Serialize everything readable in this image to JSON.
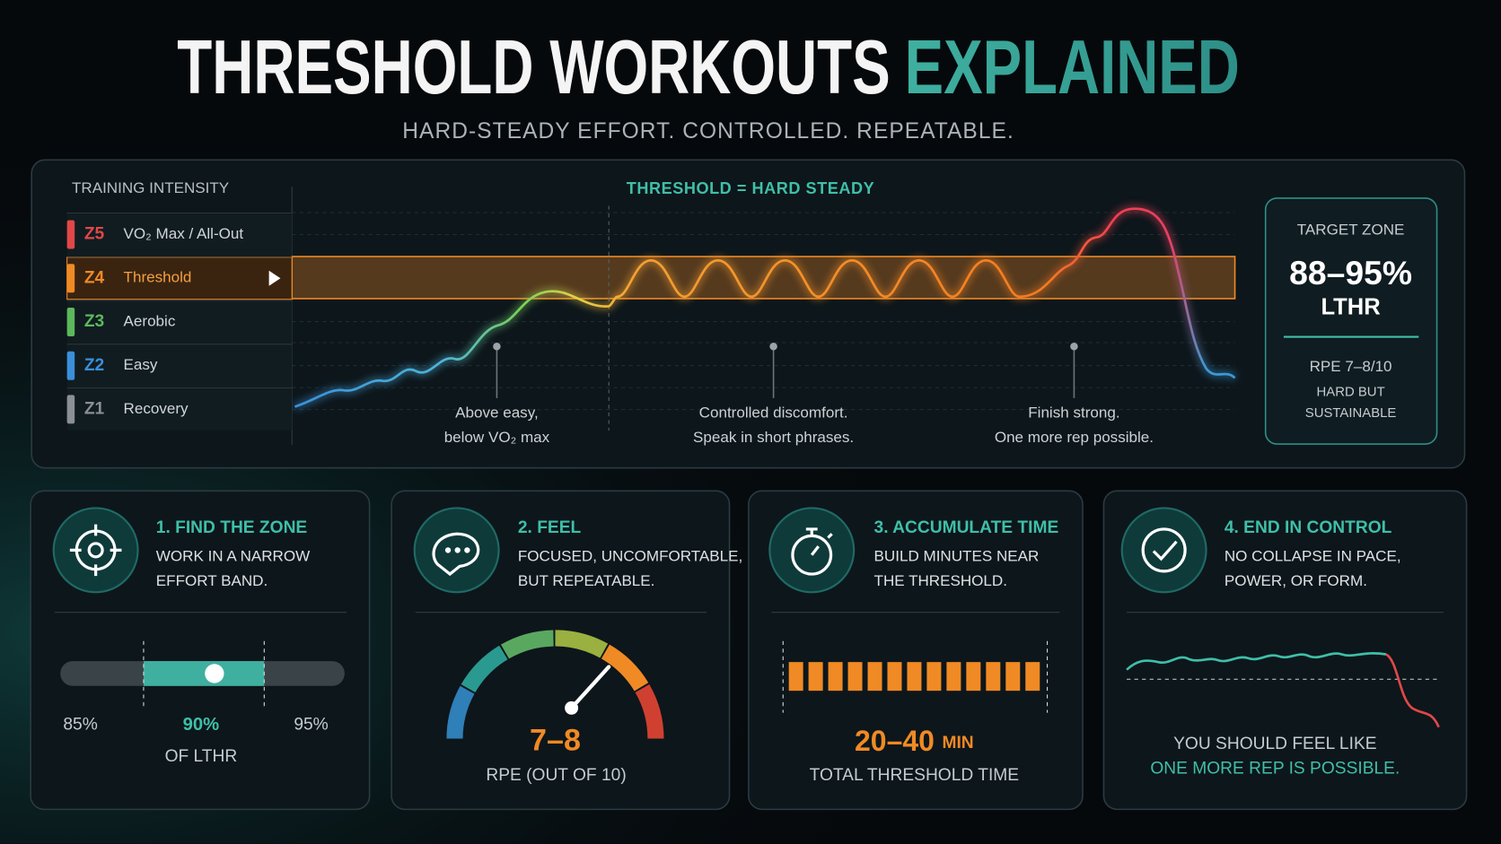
{
  "header": {
    "title_main": "THRESHOLD WORKOUTS",
    "title_accent": "EXPLAINED",
    "subtitle": "HARD-STEADY EFFORT. CONTROLLED. REPEATABLE."
  },
  "intensity_panel": {
    "label": "TRAINING INTENSITY",
    "heading": "THRESHOLD = HARD STEADY",
    "zones": [
      {
        "code": "Z5",
        "name": "VO₂ Max / All-Out"
      },
      {
        "code": "Z4",
        "name": "Threshold"
      },
      {
        "code": "Z3",
        "name": "Aerobic"
      },
      {
        "code": "Z2",
        "name": "Easy"
      },
      {
        "code": "Z1",
        "name": "Recovery"
      }
    ],
    "annotations": [
      [
        "Above easy,",
        "below VO₂ max"
      ],
      [
        "Controlled discomfort.",
        "Speak in short phrases."
      ],
      [
        "Finish strong.",
        "One more rep possible."
      ]
    ],
    "target": {
      "label": "TARGET ZONE",
      "range": "88–95%",
      "unit": "LTHR",
      "rpe": "RPE 7–8/10",
      "note": [
        "HARD BUT",
        "SUSTAINABLE"
      ]
    }
  },
  "steps": [
    {
      "title": "1. FIND THE ZONE",
      "text": [
        "WORK IN A NARROW",
        "EFFORT BAND."
      ],
      "low": "85%",
      "mid": "90%",
      "high": "95%",
      "caption": "OF LTHR"
    },
    {
      "title": "2. FEEL",
      "text": [
        "FOCUSED, UNCOMFORTABLE,",
        "BUT REPEATABLE."
      ],
      "value": "7–8",
      "caption": "RPE (OUT OF 10)"
    },
    {
      "title": "3. ACCUMULATE TIME",
      "text": [
        "BUILD MINUTES NEAR",
        "THE THRESHOLD."
      ],
      "value": "20–40",
      "unit": "MIN",
      "caption": "TOTAL THRESHOLD TIME"
    },
    {
      "title": "4. END IN CONTROL",
      "text": [
        "NO COLLAPSE IN PACE,",
        "POWER, OR FORM."
      ],
      "caption": [
        "YOU SHOULD FEEL LIKE",
        "ONE MORE REP IS POSSIBLE."
      ]
    }
  ]
}
